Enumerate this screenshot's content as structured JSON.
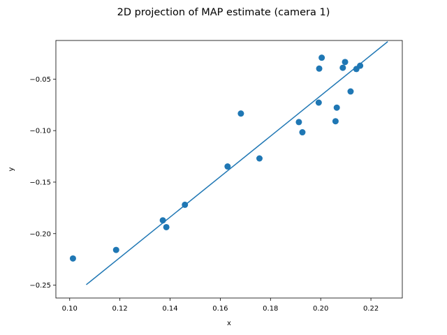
{
  "chart_data": {
    "type": "scatter",
    "title": "2D projection of MAP estimate (camera 1)",
    "xlabel": "x",
    "ylabel": "y",
    "xlim": [
      0.0945,
      0.2325
    ],
    "ylim": [
      -0.2625,
      -0.0125
    ],
    "x_ticks": [
      0.1,
      0.12,
      0.14,
      0.16,
      0.18,
      0.2,
      0.22
    ],
    "x_tick_labels": [
      "0.10",
      "0.12",
      "0.14",
      "0.16",
      "0.18",
      "0.20",
      "0.22"
    ],
    "y_ticks": [
      -0.25,
      -0.2,
      -0.15,
      -0.1,
      -0.05
    ],
    "y_tick_labels": [
      "−0.25",
      "−0.20",
      "−0.15",
      "−0.10",
      "−0.05"
    ],
    "grid": false,
    "color": "#1f77b4",
    "points": [
      {
        "x": 0.1013,
        "y": -0.2241
      },
      {
        "x": 0.1185,
        "y": -0.2158
      },
      {
        "x": 0.1371,
        "y": -0.1871
      },
      {
        "x": 0.1385,
        "y": -0.1937
      },
      {
        "x": 0.1459,
        "y": -0.172
      },
      {
        "x": 0.1629,
        "y": -0.1348
      },
      {
        "x": 0.1682,
        "y": -0.0834
      },
      {
        "x": 0.1756,
        "y": -0.127
      },
      {
        "x": 0.1913,
        "y": -0.0917
      },
      {
        "x": 0.1927,
        "y": -0.1016
      },
      {
        "x": 0.1992,
        "y": -0.0728
      },
      {
        "x": 0.1994,
        "y": -0.0398
      },
      {
        "x": 0.2004,
        "y": -0.0292
      },
      {
        "x": 0.2059,
        "y": -0.0909
      },
      {
        "x": 0.2064,
        "y": -0.0777
      },
      {
        "x": 0.2088,
        "y": -0.039
      },
      {
        "x": 0.2097,
        "y": -0.0334
      },
      {
        "x": 0.2119,
        "y": -0.062
      },
      {
        "x": 0.2142,
        "y": -0.0402
      },
      {
        "x": 0.2157,
        "y": -0.037
      }
    ],
    "line": {
      "x": [
        0.1066,
        0.2267
      ],
      "y": [
        -0.2496,
        -0.0136
      ]
    }
  }
}
